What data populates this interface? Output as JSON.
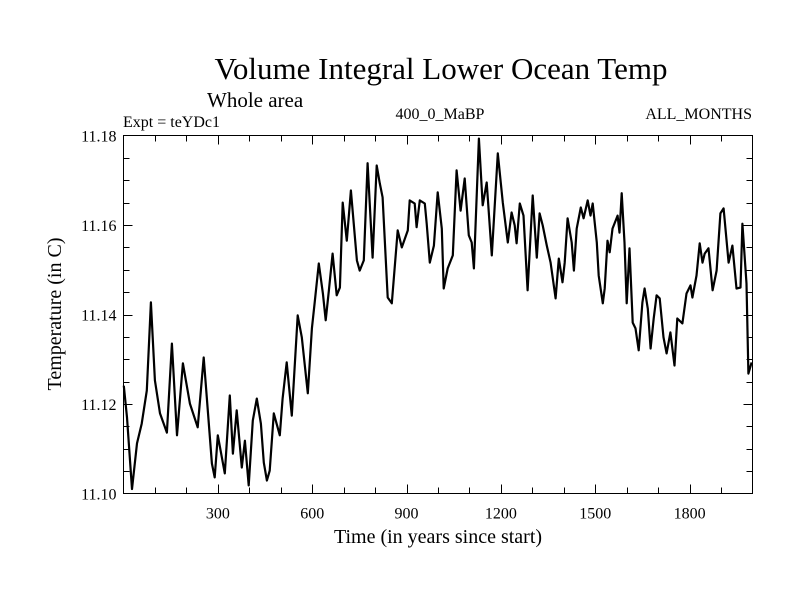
{
  "chart_data": {
    "type": "line",
    "title": "Volume Integral Lower Ocean Temp",
    "subtitle": "Whole area",
    "annotations": {
      "experiment": "Expt = teYDc1",
      "period": "400_0_MaBP",
      "months": "ALL_MONTHS"
    },
    "xlabel": "Time (in years since start)",
    "ylabel": "Temperature (in C)",
    "xlim": [
      0,
      2000
    ],
    "ylim": [
      11.1,
      11.18
    ],
    "x_ticks": [
      300,
      600,
      900,
      1200,
      1500,
      1800
    ],
    "x_tick_labels": [
      "300",
      "600",
      "900",
      "1200",
      "1500",
      "1800"
    ],
    "x_minor_step": 100,
    "y_ticks": [
      11.1,
      11.12,
      11.14,
      11.16,
      11.18
    ],
    "y_tick_labels": [
      "11.10",
      "11.12",
      "11.14",
      "11.16",
      "11.18"
    ],
    "y_minor_step": 0.005,
    "grid": false,
    "legend": "none",
    "series": [
      {
        "name": "teYDc1",
        "color": "#000000",
        "x": [
          1,
          11,
          27,
          43,
          58,
          74,
          87,
          100,
          116,
          138,
          154,
          170,
          189,
          211,
          236,
          255,
          281,
          290,
          300,
          322,
          338,
          348,
          360,
          376,
          386,
          398,
          411,
          424,
          437,
          446,
          456,
          465,
          478,
          497,
          506,
          519,
          535,
          554,
          567,
          586,
          599,
          608,
          621,
          634,
          643,
          653,
          665,
          678,
          688,
          697,
          710,
          723,
          742,
          751,
          764,
          776,
          792,
          805,
          815,
          824,
          840,
          853,
          872,
          885,
          904,
          910,
          926,
          932,
          942,
          958,
          964,
          974,
          987,
          999,
          1012,
          1018,
          1031,
          1047,
          1059,
          1072,
          1085,
          1098,
          1107,
          1114,
          1130,
          1142,
          1155,
          1171,
          1190,
          1206,
          1222,
          1234,
          1244,
          1250,
          1260,
          1272,
          1285,
          1301,
          1314,
          1323,
          1333,
          1346,
          1358,
          1374,
          1384,
          1396,
          1403,
          1412,
          1425,
          1432,
          1441,
          1454,
          1463,
          1476,
          1485,
          1492,
          1505,
          1511,
          1524,
          1530,
          1539,
          1546,
          1555,
          1571,
          1577,
          1584,
          1593,
          1600,
          1609,
          1619,
          1628,
          1638,
          1650,
          1657,
          1667,
          1676,
          1686,
          1695,
          1705,
          1717,
          1727,
          1739,
          1752,
          1761,
          1777,
          1790,
          1803,
          1809,
          1822,
          1832,
          1841,
          1848,
          1860,
          1873,
          1886,
          1898,
          1908,
          1924,
          1936,
          1949,
          1962,
          1968,
          1981,
          1987,
          1997
        ],
        "y": [
          11.1241,
          11.117,
          11.101,
          11.1112,
          11.1156,
          11.123,
          11.1427,
          11.1253,
          11.1179,
          11.1136,
          11.1335,
          11.113,
          11.1291,
          11.1201,
          11.1148,
          11.1304,
          11.1067,
          11.1036,
          11.113,
          11.1045,
          11.1219,
          11.1089,
          11.1186,
          11.1058,
          11.1118,
          11.1018,
          11.1163,
          11.1212,
          11.1156,
          11.1069,
          11.1029,
          11.1051,
          11.1179,
          11.113,
          11.1212,
          11.1293,
          11.1174,
          11.1398,
          11.1349,
          11.1224,
          11.1369,
          11.1427,
          11.1514,
          11.1447,
          11.1387,
          11.1454,
          11.1536,
          11.1443,
          11.146,
          11.165,
          11.1565,
          11.1677,
          11.1521,
          11.1498,
          11.1521,
          11.1738,
          11.1527,
          11.1733,
          11.1693,
          11.1662,
          11.1438,
          11.1425,
          11.1588,
          11.155,
          11.1588,
          11.1655,
          11.1648,
          11.1595,
          11.1655,
          11.1648,
          11.1603,
          11.1516,
          11.1554,
          11.1673,
          11.1592,
          11.1458,
          11.1503,
          11.1532,
          11.1722,
          11.1632,
          11.1704,
          11.1577,
          11.1561,
          11.1503,
          11.1793,
          11.1644,
          11.1695,
          11.1532,
          11.176,
          11.165,
          11.1561,
          11.1628,
          11.1599,
          11.1559,
          11.1648,
          11.1621,
          11.1454,
          11.1666,
          11.1527,
          11.1626,
          11.1599,
          11.1554,
          11.1516,
          11.1436,
          11.1525,
          11.1472,
          11.1516,
          11.1615,
          11.1561,
          11.1498,
          11.1592,
          11.1639,
          11.1615,
          11.1655,
          11.1621,
          11.1648,
          11.1561,
          11.1487,
          11.1425,
          11.1458,
          11.1565,
          11.1539,
          11.1592,
          11.1621,
          11.1583,
          11.1671,
          11.1561,
          11.1425,
          11.1548,
          11.1382,
          11.1369,
          11.132,
          11.1427,
          11.1458,
          11.1413,
          11.1324,
          11.1391,
          11.1443,
          11.1436,
          11.1349,
          11.1313,
          11.136,
          11.1286,
          11.1391,
          11.138,
          11.1447,
          11.1465,
          11.1438,
          11.1487,
          11.1559,
          11.1516,
          11.1536,
          11.1548,
          11.1454,
          11.1498,
          11.1626,
          11.1637,
          11.1516,
          11.1554,
          11.1458,
          11.146,
          11.1603,
          11.1469,
          11.1268,
          11.1293
        ]
      }
    ]
  }
}
